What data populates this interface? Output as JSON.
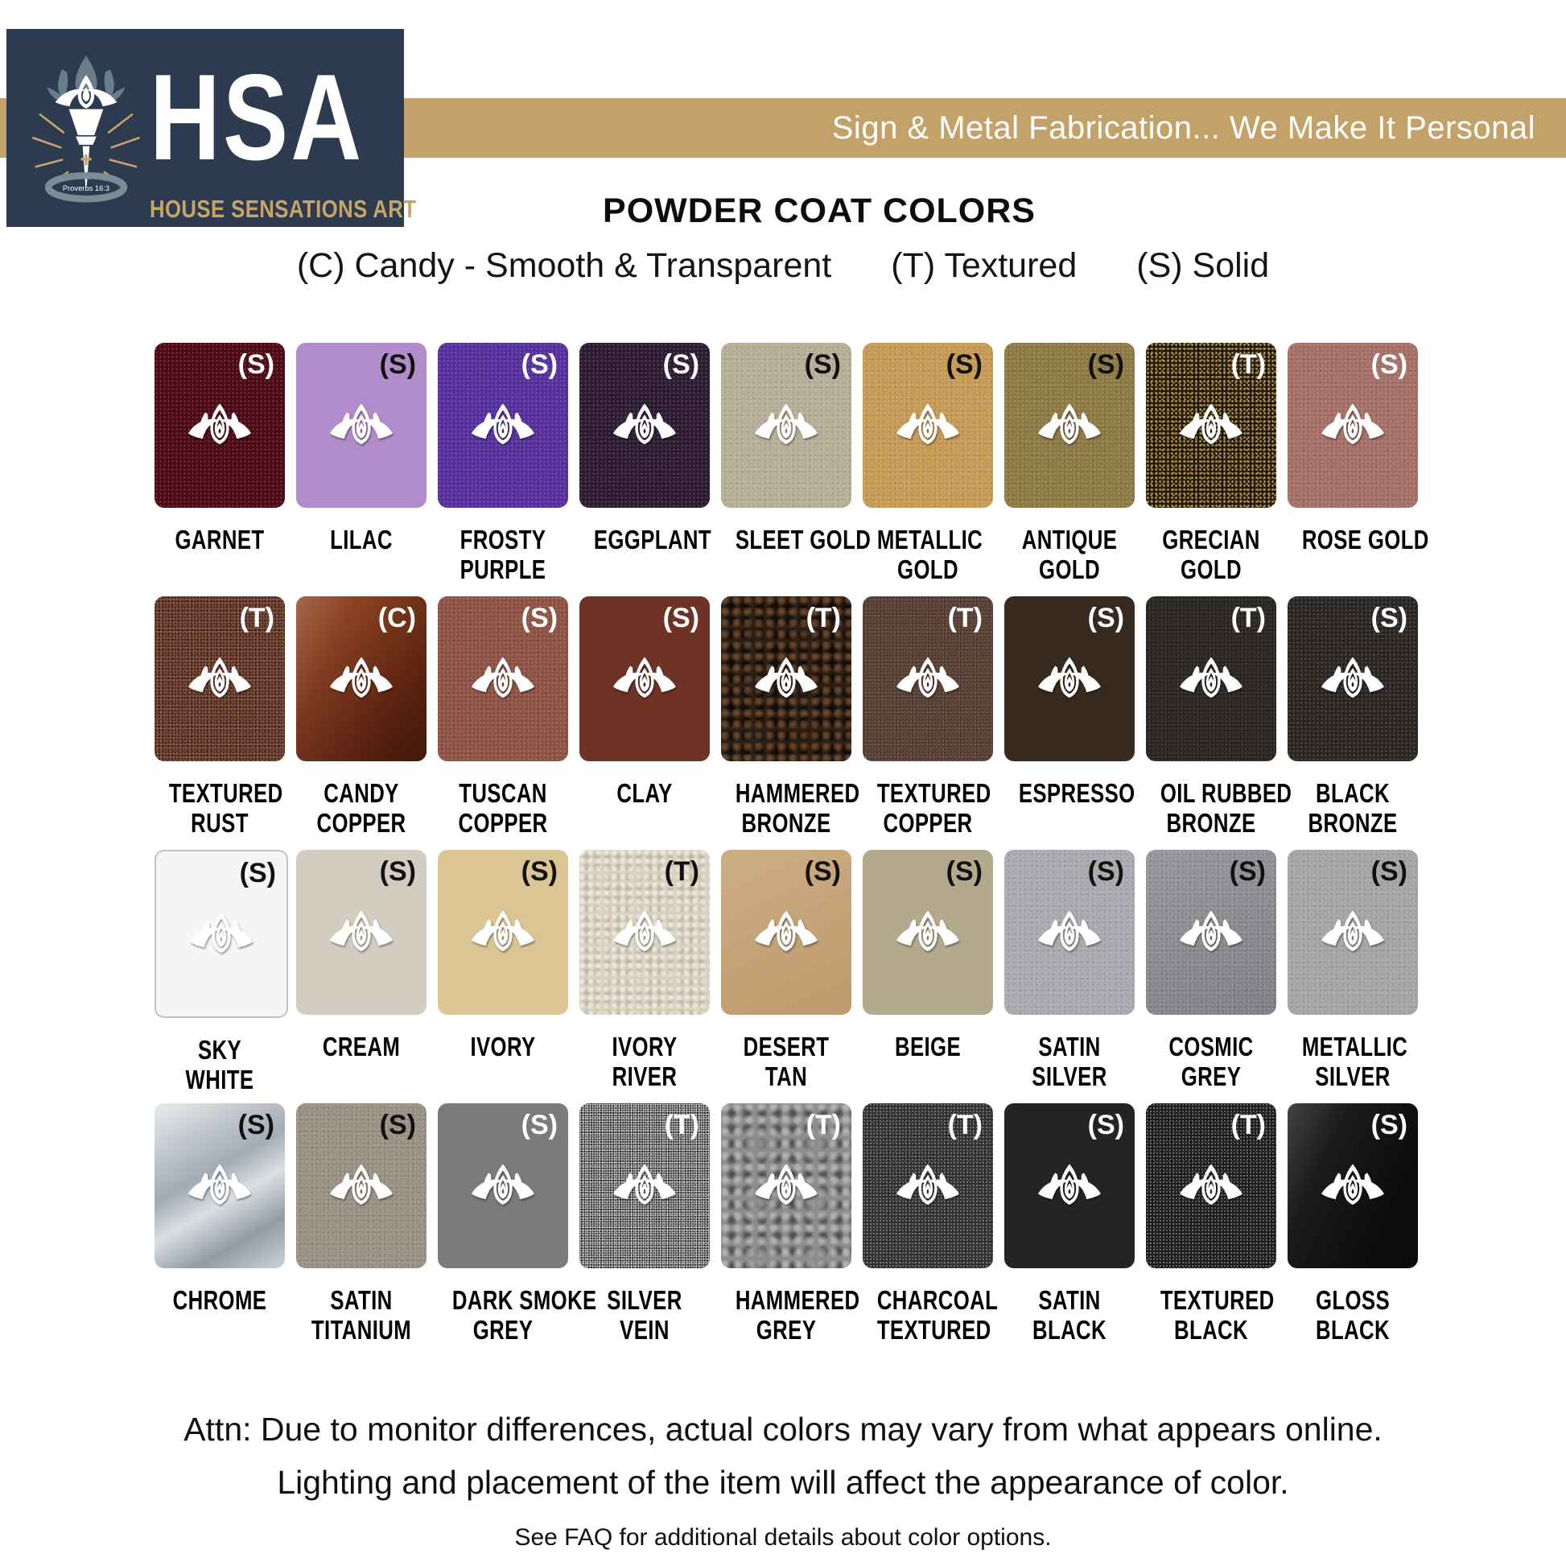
{
  "header": {
    "logo": {
      "acronym": "HSA",
      "name": "HOUSE SENSATIONS ART",
      "verse": "Proverbs 16:3",
      "bg_color": "#2d3b50",
      "gold_color": "#c9a469",
      "flame_grey": "#6b7d89"
    },
    "banner": {
      "text": "Sign & Metal Fabrication... We Make It Personal",
      "bg_color": "#c2a269",
      "text_color": "#ffffff"
    }
  },
  "title": "POWDER COAT COLORS",
  "legend": [
    {
      "code": "(C)",
      "label": "Candy - Smooth & Transparent"
    },
    {
      "code": "(T)",
      "label": "Textured"
    },
    {
      "code": "(S)",
      "label": "Solid"
    }
  ],
  "swatches": [
    {
      "name": "Garnet",
      "lines": [
        "GARNET"
      ],
      "type": "(S)",
      "marker_color": "#ffffff",
      "color": "#4e0b16",
      "texture": "sparkle"
    },
    {
      "name": "Lilac",
      "lines": [
        "LILAC"
      ],
      "type": "(S)",
      "marker_color": "#111111",
      "color": "#b18cca",
      "texture": "none"
    },
    {
      "name": "Frosty Purple",
      "lines": [
        "FROSTY",
        "PURPLE"
      ],
      "type": "(S)",
      "marker_color": "#ffffff",
      "color": "#56309d",
      "texture": "sparkle"
    },
    {
      "name": "Eggplant",
      "lines": [
        "EGGPLANT"
      ],
      "type": "(S)",
      "marker_color": "#ffffff",
      "color": "#2e1c33",
      "texture": "sparkle"
    },
    {
      "name": "Sleet Gold",
      "lines": [
        "SLEET GOLD"
      ],
      "type": "(S)",
      "marker_color": "#111111",
      "color": "#b7ae97",
      "texture": "sparkle"
    },
    {
      "name": "Metallic Gold",
      "lines": [
        "METALLIC",
        "GOLD"
      ],
      "type": "(S)",
      "marker_color": "#111111",
      "color": "#c69b55",
      "texture": "sparkle"
    },
    {
      "name": "Antique Gold",
      "lines": [
        "ANTIQUE",
        "GOLD"
      ],
      "type": "(S)",
      "marker_color": "#111111",
      "color": "#8e7a45",
      "texture": "sparkle"
    },
    {
      "name": "Grecian Gold",
      "lines": [
        "GRECIAN",
        "GOLD"
      ],
      "type": "(T)",
      "marker_color": "#ffffff",
      "color": "#241e11",
      "speck_color": "#b08d45",
      "texture": "speck-gold"
    },
    {
      "name": "Rose Gold",
      "lines": [
        "ROSE GOLD"
      ],
      "type": "(S)",
      "marker_color": "#ffffff",
      "color": "#a57068",
      "texture": "sparkle"
    },
    {
      "name": "Textured Rust",
      "lines": [
        "TEXTURED",
        "RUST"
      ],
      "type": "(T)",
      "marker_color": "#ffffff",
      "color": "#7c4a37",
      "texture": "speck-dark"
    },
    {
      "name": "Candy Copper",
      "lines": [
        "CANDY",
        "COPPER"
      ],
      "type": "(C)",
      "marker_color": "#ffffff",
      "color": "#8c3c18",
      "color2": "#5e2110",
      "texture": "gloss"
    },
    {
      "name": "Tuscan Copper",
      "lines": [
        "TUSCAN",
        "COPPER"
      ],
      "type": "(S)",
      "marker_color": "#ffffff",
      "color": "#8e5344",
      "texture": "sparkle"
    },
    {
      "name": "Clay",
      "lines": [
        "CLAY"
      ],
      "type": "(S)",
      "marker_color": "#ffffff",
      "color": "#6f3226",
      "texture": "none"
    },
    {
      "name": "Hammered Bronze",
      "lines": [
        "HAMMERED",
        "BRONZE"
      ],
      "type": "(T)",
      "marker_color": "#ffffff",
      "color": "#2c2016",
      "texture": "hammer-dark"
    },
    {
      "name": "Textured Copper",
      "lines": [
        "TEXTURED",
        "COPPER"
      ],
      "type": "(T)",
      "marker_color": "#ffffff",
      "color": "#5e4539",
      "texture": "speck-fine"
    },
    {
      "name": "Espresso",
      "lines": [
        "ESPRESSO"
      ],
      "type": "(S)",
      "marker_color": "#ffffff",
      "color": "#38291f",
      "texture": "none"
    },
    {
      "name": "Oil Rubbed Bronze",
      "lines": [
        "OIL RUBBED",
        "BRONZE"
      ],
      "type": "(T)",
      "marker_color": "#ffffff",
      "color": "#2e2a26",
      "texture": "speck-fine"
    },
    {
      "name": "Black Bronze",
      "lines": [
        "BLACK",
        "BRONZE"
      ],
      "type": "(S)",
      "marker_color": "#ffffff",
      "color": "#2a2725",
      "texture": "sparkle"
    },
    {
      "name": "Sky White",
      "lines": [
        "SKY",
        "WHITE"
      ],
      "type": "(S)",
      "marker_color": "#111111",
      "color": "#f5f5f6",
      "border": "#c2c2c2",
      "texture": "none"
    },
    {
      "name": "Cream",
      "lines": [
        "CREAM"
      ],
      "type": "(S)",
      "marker_color": "#111111",
      "color": "#d3cdc1",
      "texture": "none"
    },
    {
      "name": "Ivory",
      "lines": [
        "IVORY"
      ],
      "type": "(S)",
      "marker_color": "#111111",
      "color": "#dcc595",
      "texture": "none"
    },
    {
      "name": "Ivory River",
      "lines": [
        "IVORY",
        "RIVER"
      ],
      "type": "(T)",
      "marker_color": "#111111",
      "color": "#d9d1be",
      "texture": "hammer-light"
    },
    {
      "name": "Desert Tan",
      "lines": [
        "DESERT",
        "TAN"
      ],
      "type": "(S)",
      "marker_color": "#111111",
      "color": "#cdad82",
      "color2": "#bd9a6e",
      "texture": "none"
    },
    {
      "name": "Beige",
      "lines": [
        "BEIGE"
      ],
      "type": "(S)",
      "marker_color": "#111111",
      "color": "#b3aa8d",
      "texture": "none"
    },
    {
      "name": "Satin Silver",
      "lines": [
        "SATIN",
        "SILVER"
      ],
      "type": "(S)",
      "marker_color": "#111111",
      "color": "#a8aaad",
      "texture": "sparkle"
    },
    {
      "name": "Cosmic Grey",
      "lines": [
        "COSMIC",
        "GREY"
      ],
      "type": "(S)",
      "marker_color": "#111111",
      "color": "#95979a",
      "color2": "#7e8083",
      "texture": "sparkle"
    },
    {
      "name": "Metallic Silver",
      "lines": [
        "METALLIC",
        "SILVER"
      ],
      "type": "(S)",
      "marker_color": "#111111",
      "color": "#a3a5a7",
      "texture": "sparkle"
    },
    {
      "name": "Chrome",
      "lines": [
        "CHROME"
      ],
      "type": "(S)",
      "marker_color": "#111111",
      "color": "#c9cfd5",
      "color2": "#aab3bb",
      "texture": "chrome"
    },
    {
      "name": "Satin Titanium",
      "lines": [
        "SATIN",
        "TITANIUM"
      ],
      "type": "(S)",
      "marker_color": "#111111",
      "color": "#9a9184",
      "texture": "sparkle"
    },
    {
      "name": "Dark Smoke Grey",
      "lines": [
        "DARK SMOKE",
        "GREY"
      ],
      "type": "(S)",
      "marker_color": "#ffffff",
      "color": "#797b7d",
      "texture": "none"
    },
    {
      "name": "Silver Vein",
      "lines": [
        "SILVER",
        "VEIN"
      ],
      "type": "(T)",
      "marker_color": "#ffffff",
      "color": "#4a4a4a",
      "texture": "speck-bw"
    },
    {
      "name": "Hammered Grey",
      "lines": [
        "HAMMERED",
        "GREY"
      ],
      "type": "(T)",
      "marker_color": "#ffffff",
      "color": "#8b8d8f",
      "texture": "hammer"
    },
    {
      "name": "Charcoal Textured",
      "lines": [
        "CHARCOAL",
        "TEXTURED"
      ],
      "type": "(T)",
      "marker_color": "#ffffff",
      "color": "#2f3031",
      "texture": "speck-light"
    },
    {
      "name": "Satin Black",
      "lines": [
        "SATIN",
        "BLACK"
      ],
      "type": "(S)",
      "marker_color": "#ffffff",
      "color": "#232425",
      "texture": "none"
    },
    {
      "name": "Textured Black",
      "lines": [
        "TEXTURED",
        "BLACK"
      ],
      "type": "(T)",
      "marker_color": "#ffffff",
      "color": "#1c1d1e",
      "texture": "speck-light"
    },
    {
      "name": "Gloss Black",
      "lines": [
        "GLOSS",
        "BLACK"
      ],
      "type": "(S)",
      "marker_color": "#ffffff",
      "color": "#0e0f10",
      "texture": "gloss"
    }
  ],
  "footer": {
    "attn_line1": "Attn: Due to monitor differences, actual colors may vary from what appears online.",
    "attn_line2": "Lighting and placement of the item will affect the appearance of color.",
    "faq": "See FAQ for additional details about color options."
  }
}
